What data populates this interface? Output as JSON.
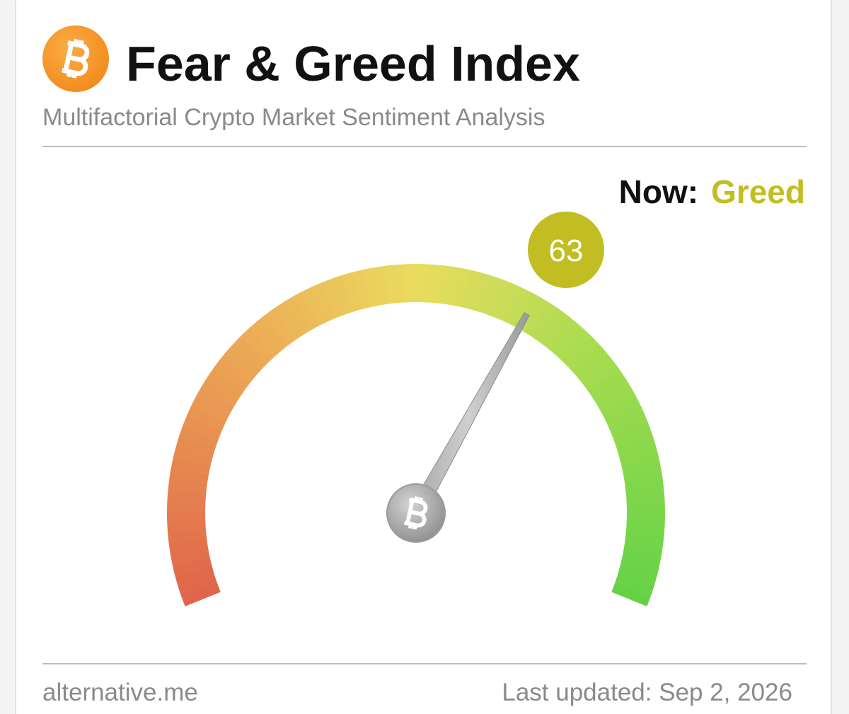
{
  "header": {
    "title": "Fear & Greed Index",
    "subtitle": "Multifactorial Crypto Market Sentiment Analysis"
  },
  "status": {
    "label": "Now:",
    "classification": "Greed",
    "color": "#c2bd22"
  },
  "gauge": {
    "value": 63,
    "range": [
      0,
      100
    ]
  },
  "footer": {
    "source": "alternative.me",
    "updated": "Last updated: Sep 2, 2026"
  }
}
